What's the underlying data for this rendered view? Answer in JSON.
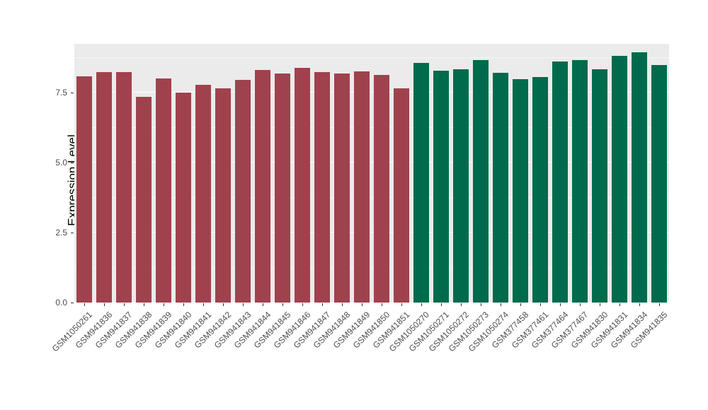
{
  "chart_data": {
    "type": "bar",
    "title": "",
    "xlabel": "",
    "ylabel": "Expression Level",
    "ylim": [
      0,
      9.25
    ],
    "yticks": [
      0.0,
      2.5,
      5.0,
      7.5
    ],
    "yticks_minor": [
      1.25,
      3.75,
      6.25,
      8.75
    ],
    "grid": true,
    "legend_position": "none",
    "panel_bg": "#EBEBEB",
    "grid_color": "#FFFFFF",
    "categories": [
      "GSM1050261",
      "GSM941836",
      "GSM941837",
      "GSM941838",
      "GSM941839",
      "GSM941840",
      "GSM941841",
      "GSM941842",
      "GSM941843",
      "GSM941844",
      "GSM941845",
      "GSM941846",
      "GSM941847",
      "GSM941848",
      "GSM941849",
      "GSM941850",
      "GSM941851",
      "GSM1050270",
      "GSM1050271",
      "GSM1050272",
      "GSM1050273",
      "GSM1050274",
      "GSM377458",
      "GSM377461",
      "GSM377464",
      "GSM377467",
      "GSM941830",
      "GSM941831",
      "GSM941834",
      "GSM941835"
    ],
    "values": [
      8.1,
      8.23,
      8.23,
      7.35,
      8.0,
      7.5,
      7.78,
      7.65,
      7.95,
      8.31,
      8.18,
      8.38,
      8.23,
      8.18,
      8.26,
      8.13,
      7.65,
      8.56,
      8.28,
      8.33,
      8.68,
      8.21,
      7.98,
      8.05,
      8.61,
      8.66,
      8.33,
      8.81,
      8.94,
      8.48
    ],
    "series_group": [
      "group1",
      "group1",
      "group1",
      "group1",
      "group1",
      "group1",
      "group1",
      "group1",
      "group1",
      "group1",
      "group1",
      "group1",
      "group1",
      "group1",
      "group1",
      "group1",
      "group1",
      "group2",
      "group2",
      "group2",
      "group2",
      "group2",
      "group2",
      "group2",
      "group2",
      "group2",
      "group2",
      "group2",
      "group2",
      "group2"
    ],
    "colors": {
      "group1": "#A0424D",
      "group2": "#006B4C"
    }
  }
}
